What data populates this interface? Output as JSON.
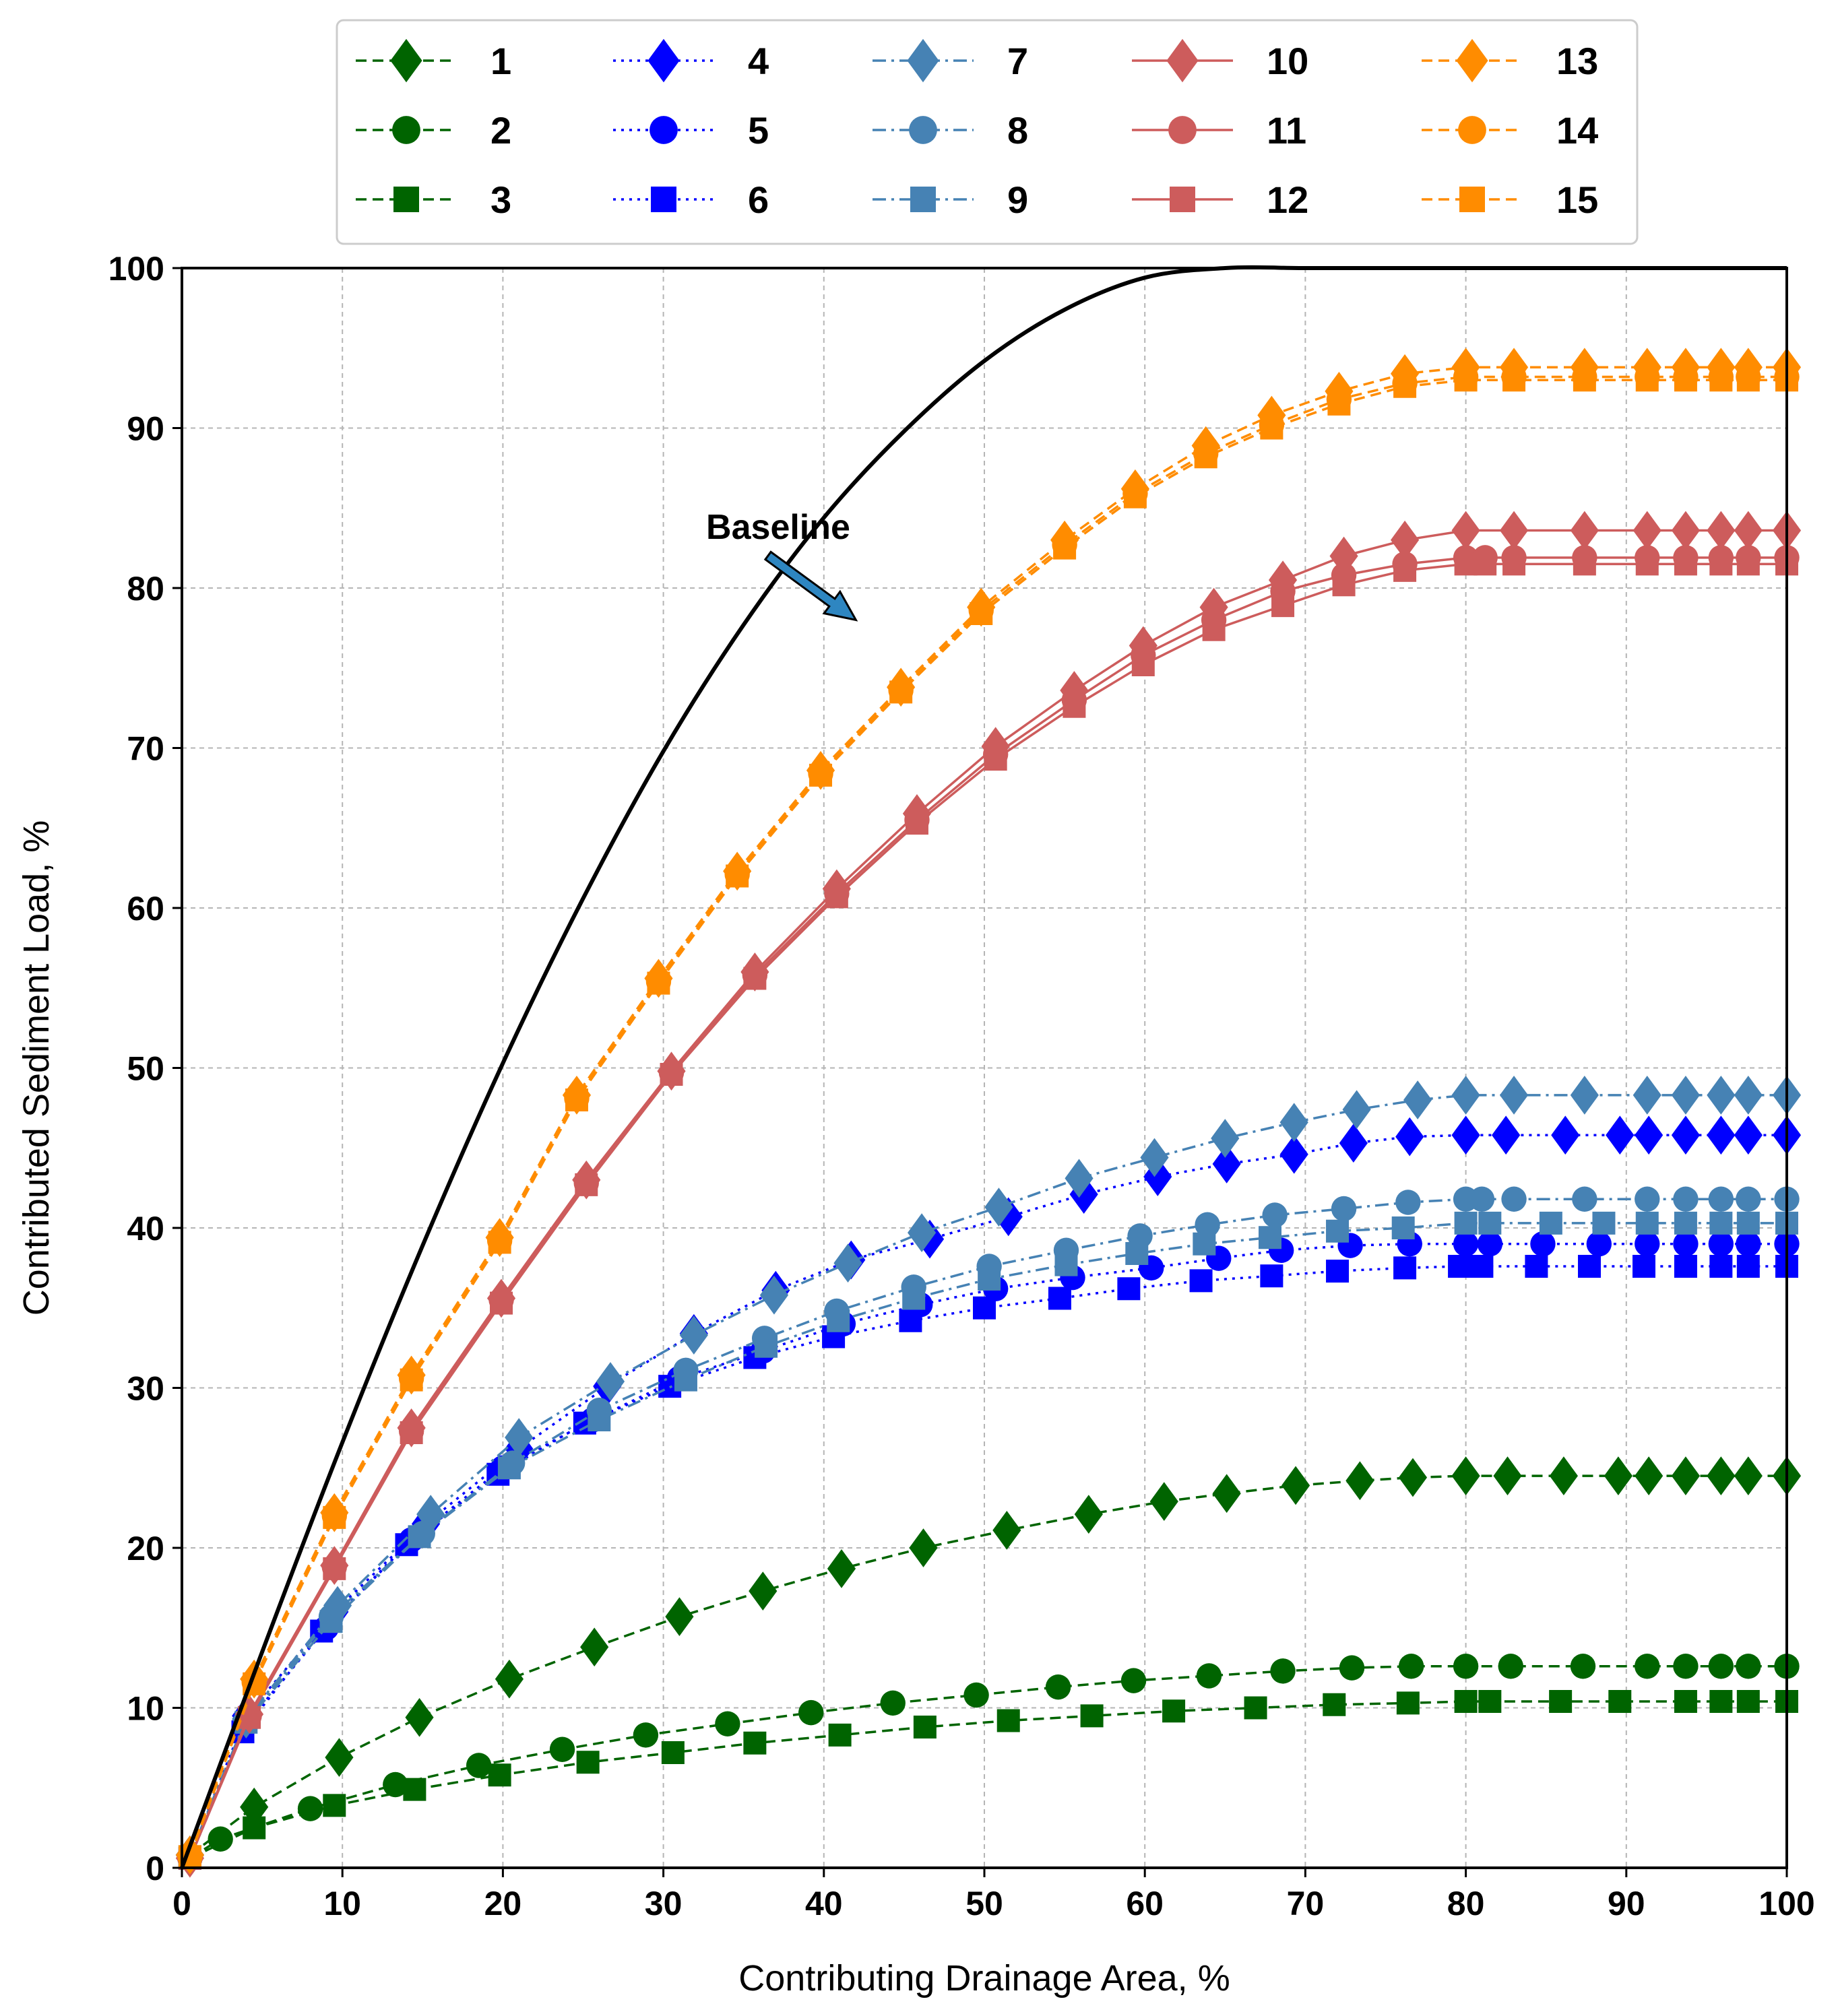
{
  "chart_data": {
    "type": "line",
    "title": "",
    "xlabel": "Contributing Drainage Area, %",
    "ylabel": "Contributed Sediment Load, %",
    "xlim": [
      0,
      100
    ],
    "ylim": [
      0,
      100
    ],
    "xticks": [
      "0",
      "10",
      "20",
      "30",
      "40",
      "50",
      "60",
      "70",
      "80",
      "90",
      "100"
    ],
    "yticks": [
      "0",
      "10",
      "20",
      "30",
      "40",
      "50",
      "60",
      "70",
      "80",
      "90",
      "100"
    ],
    "grid": true,
    "legend_position": "top, outside plot, 5 columns",
    "annotation": {
      "text": "Baseline",
      "arrow_to": [
        42,
        78
      ]
    },
    "baseline": {
      "name": "Baseline",
      "color": "#000000",
      "x": [
        0,
        5,
        10,
        15,
        20,
        25,
        30,
        35,
        40,
        45,
        50,
        55,
        60,
        65,
        70,
        75,
        80,
        85,
        90,
        95,
        100
      ],
      "y": [
        0,
        13.5,
        26.6,
        38.9,
        50.3,
        60.6,
        69.8,
        77.7,
        84.4,
        89.8,
        94.2,
        97.4,
        99.4,
        100,
        100,
        100,
        100,
        100,
        100,
        100,
        100
      ]
    },
    "series": [
      {
        "name": "1",
        "color": "#006400",
        "dash": "dashed",
        "marker": "diamond",
        "x": [
          0.5,
          4.5,
          9.8,
          14.8,
          20.4,
          25.7,
          31,
          36.2,
          41.1,
          46.2,
          51.4,
          56.5,
          61.2,
          65.1,
          69.4,
          73.4,
          76.7,
          80,
          82.6,
          86.1,
          89.5,
          91.4,
          93.7,
          95.9,
          97.6,
          100
        ],
        "values": [
          0.8,
          3.8,
          6.9,
          9.4,
          11.8,
          13.8,
          15.7,
          17.3,
          18.7,
          20.0,
          21.1,
          22.1,
          22.9,
          23.4,
          23.9,
          24.2,
          24.4,
          24.5,
          24.5,
          24.5,
          24.5,
          24.5,
          24.5,
          24.5,
          24.5,
          24.5
        ]
      },
      {
        "name": "2",
        "color": "#006400",
        "dash": "dashed",
        "marker": "circle",
        "x": [
          0.5,
          2.4,
          8,
          13.3,
          18.5,
          23.7,
          28.9,
          34,
          39.2,
          44.3,
          49.5,
          54.6,
          59.3,
          64,
          68.6,
          72.9,
          76.6,
          80,
          82.8,
          87.3,
          91.3,
          93.7,
          95.9,
          97.6,
          100
        ],
        "values": [
          0.6,
          1.8,
          3.7,
          5.2,
          6.4,
          7.4,
          8.3,
          9.0,
          9.7,
          10.3,
          10.8,
          11.3,
          11.7,
          12.0,
          12.3,
          12.5,
          12.6,
          12.6,
          12.6,
          12.6,
          12.6,
          12.6,
          12.6,
          12.6,
          12.6
        ]
      },
      {
        "name": "3",
        "color": "#006400",
        "dash": "dashed",
        "marker": "square",
        "x": [
          0.5,
          4.5,
          9.5,
          14.5,
          19.8,
          25.3,
          30.6,
          35.7,
          41,
          46.3,
          51.5,
          56.7,
          61.8,
          66.9,
          71.8,
          76.4,
          80,
          81.5,
          85.9,
          89.6,
          93.7,
          95.9,
          97.6,
          100
        ],
        "values": [
          0.6,
          2.5,
          3.9,
          4.9,
          5.8,
          6.6,
          7.2,
          7.8,
          8.3,
          8.8,
          9.2,
          9.5,
          9.8,
          10.0,
          10.2,
          10.3,
          10.4,
          10.4,
          10.4,
          10.4,
          10.4,
          10.4,
          10.4,
          10.4
        ]
      },
      {
        "name": "4",
        "color": "#0000ff",
        "dash": "dotted",
        "marker": "diamond",
        "x": [
          0.5,
          4,
          9.5,
          15.2,
          21,
          26.5,
          31.9,
          37,
          41.7,
          46.6,
          51.5,
          56.2,
          60.8,
          65.1,
          69.3,
          73,
          76.5,
          80,
          82.5,
          86.2,
          89.6,
          91.4,
          93.7,
          95.9,
          97.6,
          100
        ],
        "values": [
          0.8,
          9.5,
          16.0,
          21.5,
          26.2,
          30.1,
          33.4,
          36.1,
          38.0,
          39.3,
          40.7,
          42.1,
          43.2,
          44.0,
          44.6,
          45.3,
          45.7,
          45.8,
          45.8,
          45.8,
          45.8,
          45.8,
          45.8,
          45.8,
          45.8,
          45.8
        ]
      },
      {
        "name": "5",
        "color": "#0000ff",
        "dash": "dotted",
        "marker": "circle",
        "x": [
          0.5,
          4,
          9,
          14.3,
          20,
          25.6,
          31,
          36.2,
          41.2,
          46,
          50.7,
          55.5,
          60.4,
          64.6,
          68.5,
          72.8,
          76.5,
          80,
          81.5,
          84.8,
          88.3,
          91.3,
          93.7,
          95.9,
          97.6,
          100
        ],
        "values": [
          0.6,
          9.0,
          15.0,
          20.5,
          25.0,
          28.0,
          30.6,
          32.3,
          34.0,
          35.2,
          36.2,
          36.9,
          37.5,
          38.1,
          38.6,
          38.9,
          39.0,
          39.0,
          39.0,
          39.0,
          39.0,
          39.0,
          39.0,
          39.0,
          39.0,
          39.0
        ]
      },
      {
        "name": "6",
        "color": "#0000ff",
        "dash": "dotted",
        "marker": "square",
        "x": [
          0.5,
          3.8,
          8.7,
          14,
          19.7,
          25.1,
          30.4,
          35.7,
          40.6,
          45.4,
          50,
          54.7,
          59,
          63.5,
          67.9,
          72,
          76.2,
          79.6,
          81,
          84.4,
          87.7,
          91.1,
          93.7,
          95.9,
          97.6,
          100
        ],
        "values": [
          0.6,
          8.5,
          14.8,
          20.2,
          24.6,
          27.8,
          30.1,
          31.9,
          33.2,
          34.2,
          35.0,
          35.6,
          36.2,
          36.7,
          37.0,
          37.3,
          37.5,
          37.6,
          37.6,
          37.6,
          37.6,
          37.6,
          37.6,
          37.6,
          37.6,
          37.6
        ]
      },
      {
        "name": "7",
        "color": "#4682b4",
        "dash": "dashdot",
        "marker": "diamond",
        "x": [
          0.5,
          4,
          9.7,
          15.5,
          21,
          26.7,
          31.9,
          36.9,
          41.5,
          46.1,
          50.9,
          55.9,
          60.6,
          65,
          69.3,
          73.2,
          77,
          80,
          83,
          87.4,
          91.3,
          93.7,
          95.9,
          97.6,
          100
        ],
        "values": [
          0.8,
          9.3,
          16.4,
          22.1,
          26.9,
          30.4,
          33.3,
          35.8,
          37.8,
          39.7,
          41.3,
          43.1,
          44.4,
          45.6,
          46.6,
          47.4,
          48.0,
          48.3,
          48.3,
          48.3,
          48.3,
          48.3,
          48.3,
          48.3,
          48.3
        ]
      },
      {
        "name": "8",
        "color": "#4682b4",
        "dash": "dashdot",
        "marker": "circle",
        "x": [
          0.5,
          4,
          9.3,
          15,
          20.6,
          26,
          31.4,
          36.3,
          40.8,
          45.6,
          50.3,
          55.1,
          59.7,
          63.9,
          68.1,
          72.4,
          76.4,
          80,
          81,
          83,
          87.4,
          91.3,
          93.7,
          95.9,
          97.6,
          100
        ],
        "values": [
          0.7,
          9.2,
          15.7,
          20.9,
          25.3,
          28.6,
          31.1,
          33.1,
          34.8,
          36.3,
          37.6,
          38.6,
          39.5,
          40.2,
          40.8,
          41.2,
          41.6,
          41.8,
          41.8,
          41.8,
          41.8,
          41.8,
          41.8,
          41.8,
          41.8,
          41.8
        ]
      },
      {
        "name": "9",
        "color": "#4682b4",
        "dash": "dashdot",
        "marker": "square",
        "x": [
          0.5,
          4,
          9.3,
          14.8,
          20.4,
          26,
          31.4,
          36.4,
          40.9,
          45.6,
          50.3,
          55.1,
          59.5,
          63.7,
          67.8,
          72,
          76.1,
          80,
          81.5,
          85.3,
          88.6,
          91.3,
          93.7,
          95.9,
          97.6,
          100
        ],
        "values": [
          0.7,
          9.1,
          15.4,
          20.7,
          25.0,
          28.0,
          30.5,
          32.6,
          34.2,
          35.6,
          36.8,
          37.7,
          38.4,
          39.0,
          39.4,
          39.8,
          40.0,
          40.3,
          40.3,
          40.3,
          40.3,
          40.3,
          40.3,
          40.3,
          40.3,
          40.3
        ]
      },
      {
        "name": "10",
        "color": "#cd5c5c",
        "dash": "solid",
        "marker": "diamond",
        "x": [
          0.5,
          4.2,
          9.5,
          14.3,
          19.9,
          25.2,
          30.5,
          35.7,
          40.8,
          45.8,
          50.7,
          55.6,
          59.9,
          64.3,
          68.6,
          72.4,
          76.2,
          80,
          83,
          87.4,
          91.3,
          93.7,
          95.9,
          97.6,
          100
        ],
        "values": [
          0.6,
          9.6,
          18.9,
          27.5,
          35.6,
          43.0,
          49.8,
          56.0,
          61.2,
          65.9,
          70.1,
          73.6,
          76.4,
          78.8,
          80.5,
          82.0,
          83.0,
          83.6,
          83.6,
          83.6,
          83.6,
          83.6,
          83.6,
          83.6,
          83.6
        ]
      },
      {
        "name": "11",
        "color": "#cd5c5c",
        "dash": "solid",
        "marker": "circle",
        "x": [
          0.5,
          4.2,
          9.5,
          14.3,
          19.9,
          25.2,
          30.5,
          35.7,
          40.8,
          45.8,
          50.7,
          55.6,
          59.9,
          64.3,
          68.6,
          72.4,
          76.2,
          80,
          81.2,
          83,
          87.4,
          91.3,
          93.7,
          95.9,
          97.6,
          100
        ],
        "values": [
          0.6,
          9.5,
          18.8,
          27.3,
          35.5,
          42.8,
          49.7,
          55.8,
          60.9,
          65.5,
          69.6,
          73.0,
          75.8,
          78.0,
          79.8,
          80.8,
          81.5,
          81.9,
          81.9,
          81.9,
          81.9,
          81.9,
          81.9,
          81.9,
          81.9,
          81.9
        ]
      },
      {
        "name": "12",
        "color": "#cd5c5c",
        "dash": "solid",
        "marker": "square",
        "x": [
          0.5,
          4.2,
          9.5,
          14.3,
          19.9,
          25.2,
          30.5,
          35.7,
          40.8,
          45.8,
          50.7,
          55.6,
          59.9,
          64.3,
          68.6,
          72.4,
          76.2,
          80,
          81.2,
          83,
          87.4,
          91.3,
          93.7,
          95.9,
          97.6,
          100
        ],
        "values": [
          0.6,
          9.4,
          18.7,
          27.2,
          35.3,
          42.7,
          49.6,
          55.6,
          60.7,
          65.3,
          69.3,
          72.6,
          75.2,
          77.4,
          78.9,
          80.2,
          81.1,
          81.5,
          81.5,
          81.5,
          81.5,
          81.5,
          81.5,
          81.5,
          81.5,
          81.5
        ]
      },
      {
        "name": "13",
        "color": "#ff8c00",
        "dash": "dashed",
        "marker": "diamond",
        "x": [
          0.5,
          4.5,
          9.5,
          14.3,
          19.8,
          24.6,
          29.7,
          34.6,
          39.8,
          44.8,
          49.8,
          55,
          59.4,
          63.8,
          67.9,
          72.1,
          76.2,
          80,
          83,
          87.4,
          91.3,
          93.7,
          95.9,
          97.6,
          100
        ],
        "values": [
          0.8,
          11.8,
          22.2,
          30.8,
          39.4,
          48.3,
          55.6,
          62.3,
          68.6,
          73.8,
          78.8,
          83.0,
          86.2,
          88.9,
          90.8,
          92.3,
          93.4,
          93.8,
          93.8,
          93.8,
          93.8,
          93.8,
          93.8,
          93.8,
          93.8
        ]
      },
      {
        "name": "14",
        "color": "#ff8c00",
        "dash": "dashed",
        "marker": "circle",
        "x": [
          0.5,
          4.5,
          9.5,
          14.3,
          19.8,
          24.6,
          29.7,
          34.6,
          39.8,
          44.8,
          49.8,
          55,
          59.4,
          63.8,
          67.9,
          72.1,
          76.2,
          80,
          83,
          87.4,
          91.3,
          93.7,
          95.9,
          97.6,
          100
        ],
        "values": [
          0.7,
          11.6,
          22.0,
          30.6,
          39.2,
          48.1,
          55.4,
          62.1,
          68.4,
          73.6,
          78.6,
          82.7,
          85.9,
          88.4,
          90.2,
          91.8,
          92.8,
          93.2,
          93.2,
          93.2,
          93.2,
          93.2,
          93.2,
          93.2,
          93.2
        ]
      },
      {
        "name": "15",
        "color": "#ff8c00",
        "dash": "dashed",
        "marker": "square",
        "x": [
          0.5,
          4.5,
          9.5,
          14.3,
          19.8,
          24.6,
          29.7,
          34.6,
          39.8,
          44.8,
          49.8,
          55,
          59.4,
          63.8,
          67.9,
          72.1,
          76.2,
          80,
          83,
          87.4,
          91.3,
          93.7,
          95.9,
          97.6,
          100
        ],
        "values": [
          0.7,
          11.5,
          21.9,
          30.5,
          39.1,
          48.0,
          55.3,
          62.0,
          68.3,
          73.5,
          78.4,
          82.5,
          85.7,
          88.2,
          90.0,
          91.5,
          92.6,
          93.0,
          93.0,
          93.0,
          93.0,
          93.0,
          93.0,
          93.0,
          93.0
        ]
      }
    ]
  }
}
